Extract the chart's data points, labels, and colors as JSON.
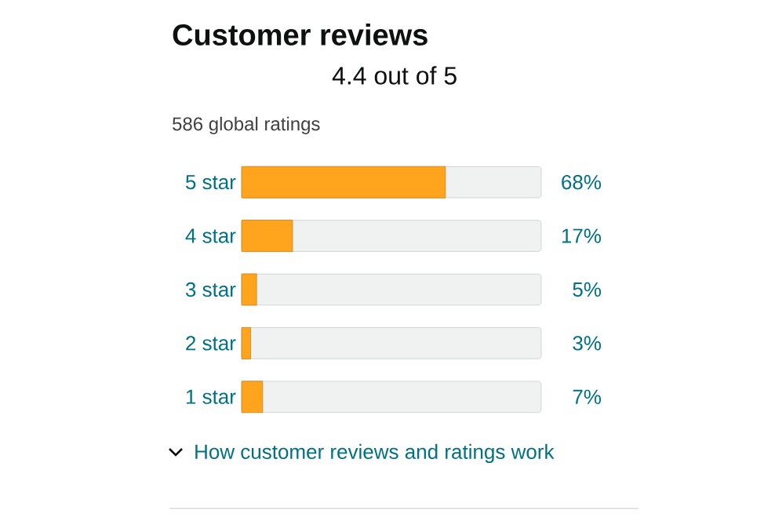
{
  "chart_data": {
    "type": "bar",
    "orientation": "horizontal",
    "title": "Customer reviews",
    "subtitle": "4.4 out of 5",
    "annotations": [
      "586 global ratings",
      "How customer reviews and ratings work"
    ],
    "categories": [
      "5 star",
      "4 star",
      "3 star",
      "2 star",
      "1 star"
    ],
    "values": [
      68,
      17,
      5,
      3,
      7
    ],
    "value_labels": [
      "68%",
      "17%",
      "5%",
      "3%",
      "7%"
    ],
    "color": "#ffa41c",
    "xlim": [
      0,
      100
    ],
    "tick_labels": "y"
  }
}
